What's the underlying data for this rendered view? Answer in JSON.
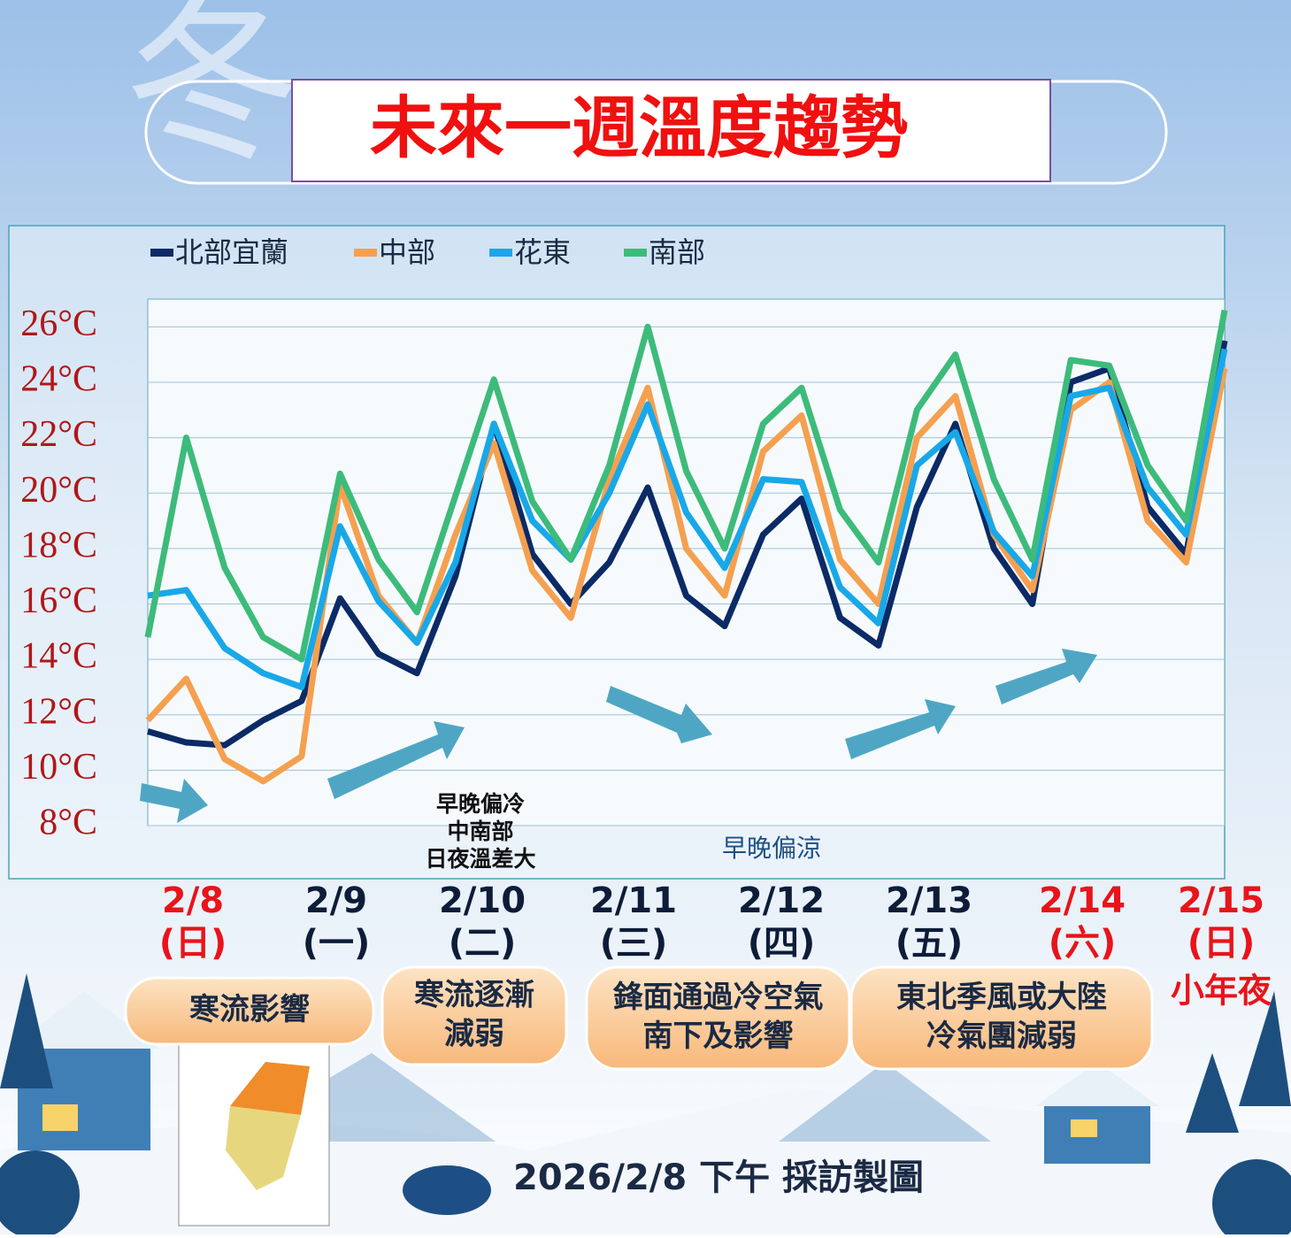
{
  "chart_data": {
    "type": "line",
    "title": "未來一週溫度趨勢",
    "ylim": [
      8,
      27
    ],
    "yticks": [
      {
        "value": 8,
        "label": "8°C"
      },
      {
        "value": 10,
        "label": "10°C"
      },
      {
        "value": 12,
        "label": "12°C"
      },
      {
        "value": 14,
        "label": "14°C"
      },
      {
        "value": 16,
        "label": "16°C"
      },
      {
        "value": 18,
        "label": "18°C"
      },
      {
        "value": 20,
        "label": "20°C"
      },
      {
        "value": 22,
        "label": "22°C"
      },
      {
        "value": 24,
        "label": "24°C"
      },
      {
        "value": 26,
        "label": "26°C"
      }
    ],
    "grid": true,
    "series": [
      {
        "name": "北部宜蘭",
        "color": "#0b2a66",
        "values": [
          11.4,
          11.0,
          10.9,
          11.8,
          12.5,
          16.2,
          14.2,
          13.5,
          17.0,
          22.5,
          17.8,
          16.0,
          17.5,
          20.2,
          16.3,
          15.2,
          18.5,
          19.8,
          15.5,
          14.5,
          19.5,
          22.5,
          18.0,
          16.0,
          24.0,
          24.5,
          19.5,
          17.8,
          25.5
        ]
      },
      {
        "name": "中部",
        "color": "#f5a050",
        "values": [
          11.8,
          13.3,
          10.4,
          9.6,
          10.5,
          20.3,
          16.3,
          14.6,
          18.5,
          21.8,
          17.2,
          15.5,
          20.5,
          23.8,
          18.0,
          16.3,
          21.5,
          22.8,
          17.6,
          16.0,
          22.0,
          23.5,
          18.5,
          16.5,
          23.0,
          24.0,
          19.0,
          17.5,
          24.5
        ]
      },
      {
        "name": "花東",
        "color": "#18a8e8",
        "values": [
          16.3,
          16.5,
          14.4,
          13.5,
          13.0,
          18.8,
          16.1,
          14.6,
          17.5,
          22.5,
          19.0,
          17.6,
          20.0,
          23.2,
          19.3,
          17.3,
          20.5,
          20.4,
          16.6,
          15.3,
          21.0,
          22.2,
          18.6,
          17.0,
          23.5,
          23.8,
          20.2,
          18.5,
          25.2
        ]
      },
      {
        "name": "南部",
        "color": "#3dbb7a",
        "values": [
          14.8,
          22.0,
          17.3,
          14.8,
          14.0,
          20.7,
          17.6,
          15.7,
          19.9,
          24.1,
          19.7,
          17.6,
          21.0,
          26.0,
          20.8,
          18.0,
          22.5,
          23.8,
          19.4,
          17.5,
          23.0,
          25.0,
          20.5,
          17.6,
          24.8,
          24.6,
          21.0,
          19.0,
          26.6
        ]
      }
    ],
    "annotations": [
      [
        "早晚偏冷",
        "中南部",
        "日夜溫差大"
      ],
      "早晚偏涼"
    ],
    "days": [
      {
        "date": "2/8",
        "weekday": "(日)",
        "color": "#e8141a"
      },
      {
        "date": "2/9",
        "weekday": "(一)",
        "color": "#0d1c38"
      },
      {
        "date": "2/10",
        "weekday": "(二)",
        "color": "#0d1c38"
      },
      {
        "date": "2/11",
        "weekday": "(三)",
        "color": "#0d1c38"
      },
      {
        "date": "2/12",
        "weekday": "(四)",
        "color": "#0d1c38"
      },
      {
        "date": "2/13",
        "weekday": "(五)",
        "color": "#0d1c38"
      },
      {
        "date": "2/14",
        "weekday": "(六)",
        "color": "#e8141a"
      },
      {
        "date": "2/15",
        "weekday": "(日)",
        "color": "#e8141a"
      }
    ],
    "day_note": "小年夜",
    "phases": [
      [
        "寒流影響"
      ],
      [
        "寒流逐漸",
        "減弱"
      ],
      [
        "鋒面通過冷空氣",
        "南下及影響"
      ],
      [
        "東北季風或大陸",
        "冷氣團減弱"
      ]
    ],
    "footer": "2026/2/8 下午 採訪製圖"
  }
}
